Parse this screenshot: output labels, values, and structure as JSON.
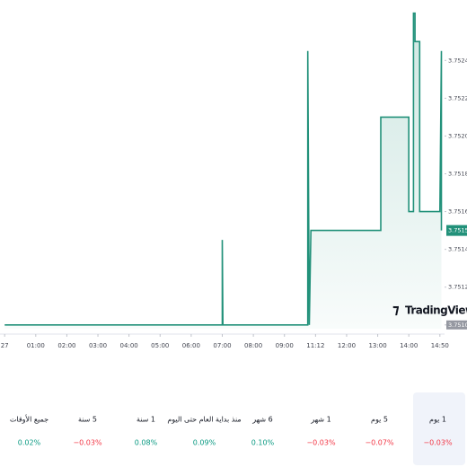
{
  "chart_data": {
    "type": "line",
    "series": [
      {
        "name": "price",
        "color": "#22917a",
        "x": [
          0,
          7,
          7,
          7.02,
          9.75,
          9.75,
          9.8,
          9.85,
          12.1,
          12.1,
          13.0,
          13.0,
          13.15,
          13.15,
          13.2,
          13.2,
          13.35,
          13.35,
          14.0,
          14.05,
          14.05
        ],
        "values": [
          3.751,
          3.751,
          3.75145,
          3.751,
          3.751,
          3.75245,
          3.751,
          3.7515,
          3.7515,
          3.7521,
          3.7521,
          3.7516,
          3.7516,
          3.75265,
          3.75265,
          3.7525,
          3.7525,
          3.7516,
          3.7516,
          3.75245,
          3.7515
        ]
      }
    ],
    "xlim": [
      -0.15,
      14.15
    ],
    "ylim": [
      3.75098,
      3.75272
    ],
    "xticks": [
      {
        "value": 0,
        "label": "27"
      },
      {
        "value": 1,
        "label": "01:00"
      },
      {
        "value": 2,
        "label": "02:00"
      },
      {
        "value": 3,
        "label": "03:00"
      },
      {
        "value": 4,
        "label": "04:00"
      },
      {
        "value": 5,
        "label": "05:00"
      },
      {
        "value": 6,
        "label": "06:00"
      },
      {
        "value": 7,
        "label": "07:00"
      },
      {
        "value": 8,
        "label": "08:00"
      },
      {
        "value": 9,
        "label": "09:00"
      },
      {
        "value": 10,
        "label": "11:12"
      },
      {
        "value": 11,
        "label": "12:00"
      },
      {
        "value": 12,
        "label": "13:00"
      },
      {
        "value": 13,
        "label": "14:00"
      },
      {
        "value": 14,
        "label": "14:50"
      }
    ],
    "yticks": [
      {
        "value": 3.751,
        "label": "3.751000"
      },
      {
        "value": 3.7512,
        "label": "3.751200"
      },
      {
        "value": 3.7514,
        "label": "3.751400"
      },
      {
        "value": 3.7516,
        "label": "3.751600"
      },
      {
        "value": 3.7518,
        "label": "3.751800"
      },
      {
        "value": 3.752,
        "label": "3.752000"
      },
      {
        "value": 3.7522,
        "label": "3.752200"
      },
      {
        "value": 3.7524,
        "label": "3.752400"
      }
    ],
    "price_marker": {
      "value": 3.7515,
      "label": "3.751500"
    },
    "watermark": "TradingView",
    "grid": false
  },
  "periods": [
    {
      "label": "1 يوم",
      "change": "−0.03%"
    },
    {
      "label": "5 يوم",
      "change": "−0.07%"
    },
    {
      "label": "1 شهر",
      "change": "−0.03%"
    },
    {
      "label": "6 شهر",
      "change": "0.10%"
    },
    {
      "label": "منذ بداية العام حتى اليوم",
      "change": "0.09%"
    },
    {
      "label": "1 سنة",
      "change": "0.08%"
    },
    {
      "label": "5 سنة",
      "change": "−0.03%"
    },
    {
      "label": "جميع الأوقات",
      "change": "0.02%"
    }
  ]
}
